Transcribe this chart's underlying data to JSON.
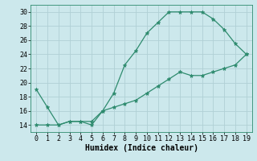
{
  "xlabel": "Humidex (Indice chaleur)",
  "xlim": [
    -0.5,
    19.5
  ],
  "ylim": [
    13.0,
    31.0
  ],
  "yticks": [
    14,
    16,
    18,
    20,
    22,
    24,
    26,
    28,
    30
  ],
  "xticks": [
    0,
    1,
    2,
    3,
    4,
    5,
    6,
    7,
    8,
    9,
    10,
    11,
    12,
    13,
    14,
    15,
    16,
    17,
    18,
    19
  ],
  "line1_x": [
    0,
    1,
    2,
    3,
    4,
    5,
    6,
    7,
    8,
    9,
    10,
    11,
    12,
    13,
    14,
    15,
    16,
    17,
    18,
    19
  ],
  "line1_y": [
    19,
    16.5,
    14,
    14.5,
    14.5,
    14,
    16,
    18.5,
    22.5,
    24.5,
    27,
    28.5,
    30,
    30,
    30,
    30,
    29,
    27.5,
    25.5,
    24
  ],
  "line2_x": [
    0,
    1,
    2,
    3,
    4,
    5,
    6,
    7,
    8,
    9,
    10,
    11,
    12,
    13,
    14,
    15,
    16,
    17,
    18,
    19
  ],
  "line2_y": [
    14,
    14,
    14,
    14.5,
    14.5,
    14.5,
    16,
    16.5,
    17,
    17.5,
    18.5,
    19.5,
    20.5,
    21.5,
    21,
    21,
    21.5,
    22,
    22.5,
    24
  ],
  "line_color": "#2E8B6E",
  "bg_color": "#cce8ec",
  "grid_color": "#b0d0d5",
  "marker": "*",
  "marker_size": 3.5,
  "tick_fontsize": 6,
  "label_fontsize": 7
}
